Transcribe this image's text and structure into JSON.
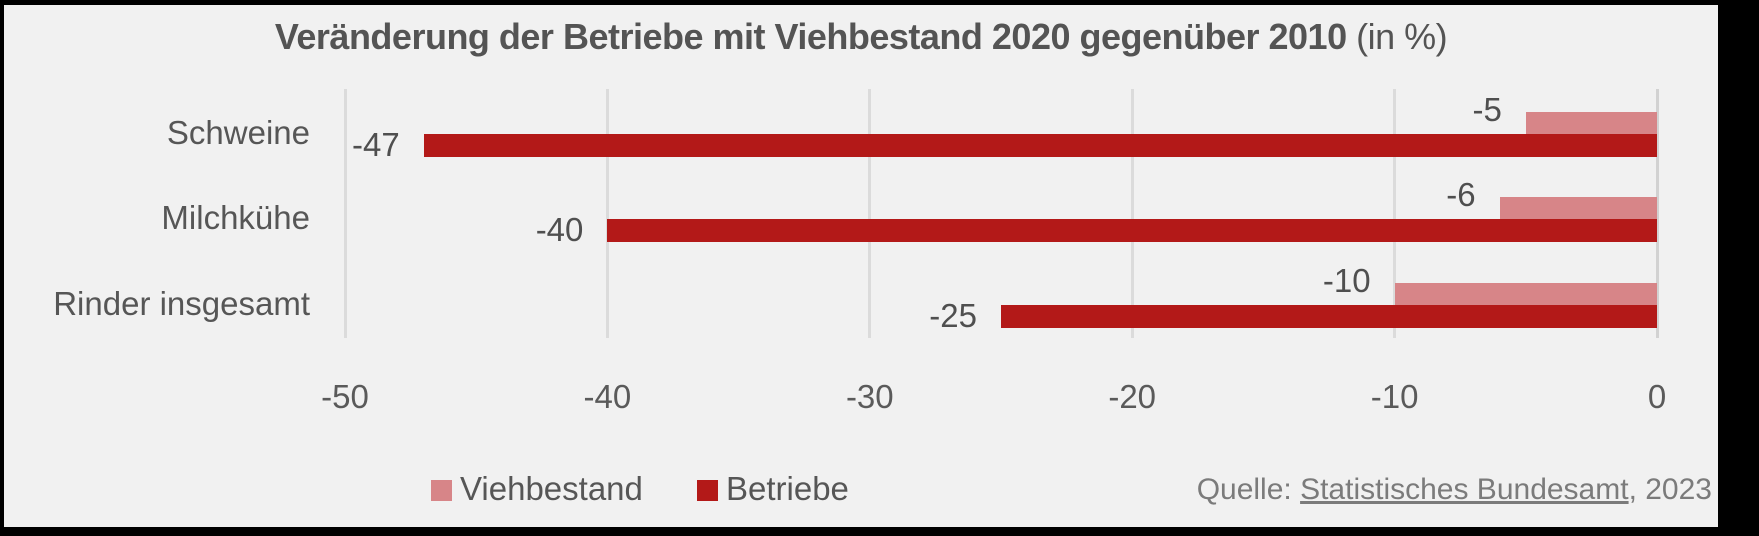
{
  "title": {
    "main": "Veränderung der Betriebe mit Viehbestand 2020 gegenüber 2010",
    "suffix": " (in %)"
  },
  "chart_data": {
    "type": "bar",
    "orientation": "horizontal",
    "title": "Veränderung der Betriebe mit Viehbestand 2020 gegenüber 2010 (in %)",
    "categories": [
      "Schweine",
      "Milchkühe",
      "Rinder insgesamt"
    ],
    "series": [
      {
        "name": "Viehbestand",
        "color": "#d78588",
        "values": [
          -5,
          -6,
          -10
        ]
      },
      {
        "name": "Betriebe",
        "color": "#b31918",
        "values": [
          -47,
          -40,
          -25
        ]
      }
    ],
    "x_ticks": [
      -50,
      -40,
      -30,
      -20,
      -10,
      0
    ],
    "xlim": [
      -52.5,
      0
    ],
    "grid": "vertical-only",
    "legend_position": "bottom",
    "data_labels": true
  },
  "source": {
    "prefix": "Quelle: ",
    "link_text": "Statistisches Bundesamt",
    "suffix": ", 2023"
  },
  "colors": {
    "canvas_background": "#f1f1f1",
    "frame": "#000000",
    "bar_viehbestand": "#d78588",
    "bar_betriebe": "#b31918",
    "text": "#565656",
    "source_text": "#7b7b7b",
    "gridline": "#dbdbdb"
  }
}
